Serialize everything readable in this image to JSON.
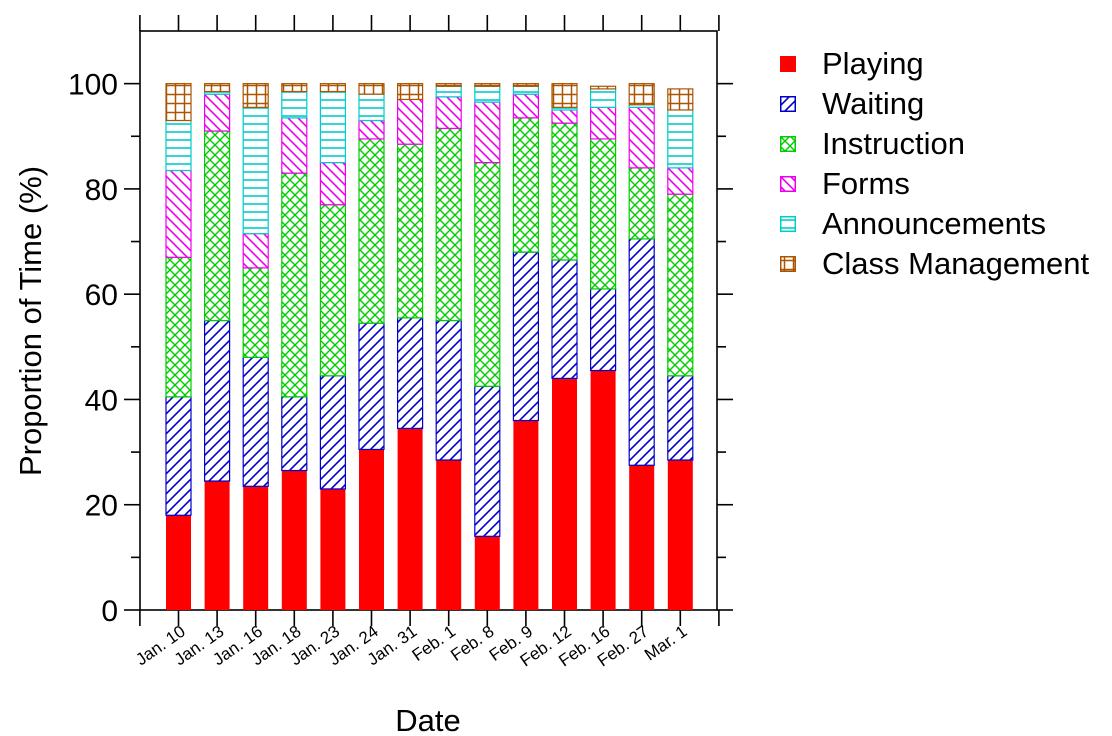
{
  "chart_data": {
    "type": "bar",
    "stacked": true,
    "xlabel": "Date",
    "ylabel": "Proportion of Time (%)",
    "ylim": [
      0,
      110
    ],
    "yticks": [
      0,
      20,
      40,
      60,
      80,
      100
    ],
    "legend_position": "right",
    "grid": false,
    "categories": [
      "Jan. 10",
      "Jan. 13",
      "Jan. 16",
      "Jan. 18",
      "Jan. 23",
      "Jan. 24",
      "Jan. 31",
      "Feb. 1",
      "Feb. 8",
      "Feb. 9",
      "Feb. 12",
      "Feb. 16",
      "Feb. 27",
      "Mar. 1"
    ],
    "series": [
      {
        "name": "Playing",
        "color": "#ff0000",
        "pattern": "solid",
        "values": [
          18,
          24.5,
          23.5,
          26.5,
          23,
          30.5,
          34.5,
          28.5,
          14,
          36,
          44,
          45.5,
          27.5,
          28.5
        ]
      },
      {
        "name": "Waiting",
        "color": "#0000cc",
        "pattern": "diagonal",
        "values": [
          22.5,
          30.5,
          24.5,
          14,
          21.5,
          24,
          21,
          26.5,
          28.5,
          32,
          22.5,
          15.5,
          43,
          16
        ]
      },
      {
        "name": "Instruction",
        "color": "#00cc00",
        "pattern": "crosshatch",
        "values": [
          26.5,
          36,
          17,
          42.5,
          32.5,
          35,
          33,
          36.5,
          42.5,
          25.5,
          26,
          28.5,
          13.5,
          34.5
        ]
      },
      {
        "name": "Forms",
        "color": "#ee00ee",
        "pattern": "back-diagonal",
        "values": [
          16.5,
          7,
          6.5,
          10.5,
          8,
          3.5,
          8.5,
          6,
          11.5,
          4.5,
          2.5,
          6,
          11.5,
          5
        ]
      },
      {
        "name": "Announcements",
        "color": "#00cccc",
        "pattern": "horizontal",
        "values": [
          9.5,
          0.5,
          24,
          5,
          13.5,
          5,
          0,
          2,
          3,
          1.5,
          0.5,
          3.5,
          0.5,
          11
        ]
      },
      {
        "name": "Class Management",
        "color": "#aa5500",
        "pattern": "grid",
        "values": [
          7,
          1.5,
          4.5,
          1.5,
          1.5,
          2,
          3,
          0.5,
          0.5,
          0.5,
          4.5,
          0.5,
          4,
          4
        ]
      }
    ]
  }
}
